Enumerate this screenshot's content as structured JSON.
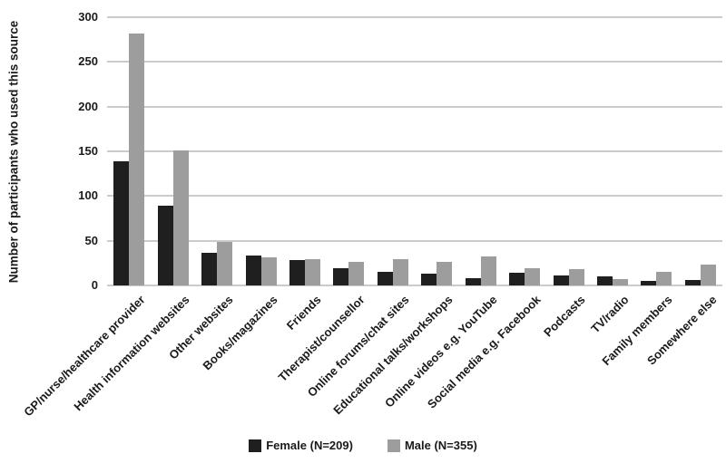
{
  "chart_data": {
    "type": "bar",
    "title": "",
    "xlabel": "",
    "ylabel": "Number of participants who used this source",
    "ylim": [
      0,
      300
    ],
    "yticks": [
      0,
      50,
      100,
      150,
      200,
      250,
      300
    ],
    "grid": true,
    "legend_position": "bottom",
    "categories": [
      "GP/nurse/healthcare provider",
      "Health information websites",
      "Other websites",
      "Books/magazines",
      "Friends",
      "Therapist/counsellor",
      "Online forums/chat sites",
      "Educational talks/workshops",
      "Online videos e.g. YouTube",
      "Social media e.g. Facebook",
      "Podcasts",
      "TV/radio",
      "Family members",
      "Somewhere else"
    ],
    "series": [
      {
        "name": "Female (N=209)",
        "color": "#1f1f1f",
        "values": [
          139,
          89,
          37,
          33,
          28,
          19,
          15,
          13,
          8,
          14,
          11,
          10,
          5,
          6
        ]
      },
      {
        "name": "Male (N=355)",
        "color": "#9d9d9d",
        "values": [
          282,
          151,
          49,
          31,
          29,
          26,
          29,
          26,
          32,
          19,
          18,
          7,
          15,
          23
        ]
      }
    ]
  },
  "colors": {
    "female_bar": "#1f1f1f",
    "male_bar": "#9d9d9d",
    "gridline": "#cbcbcb",
    "text": "#1a1a1a",
    "background": "#ffffff"
  }
}
